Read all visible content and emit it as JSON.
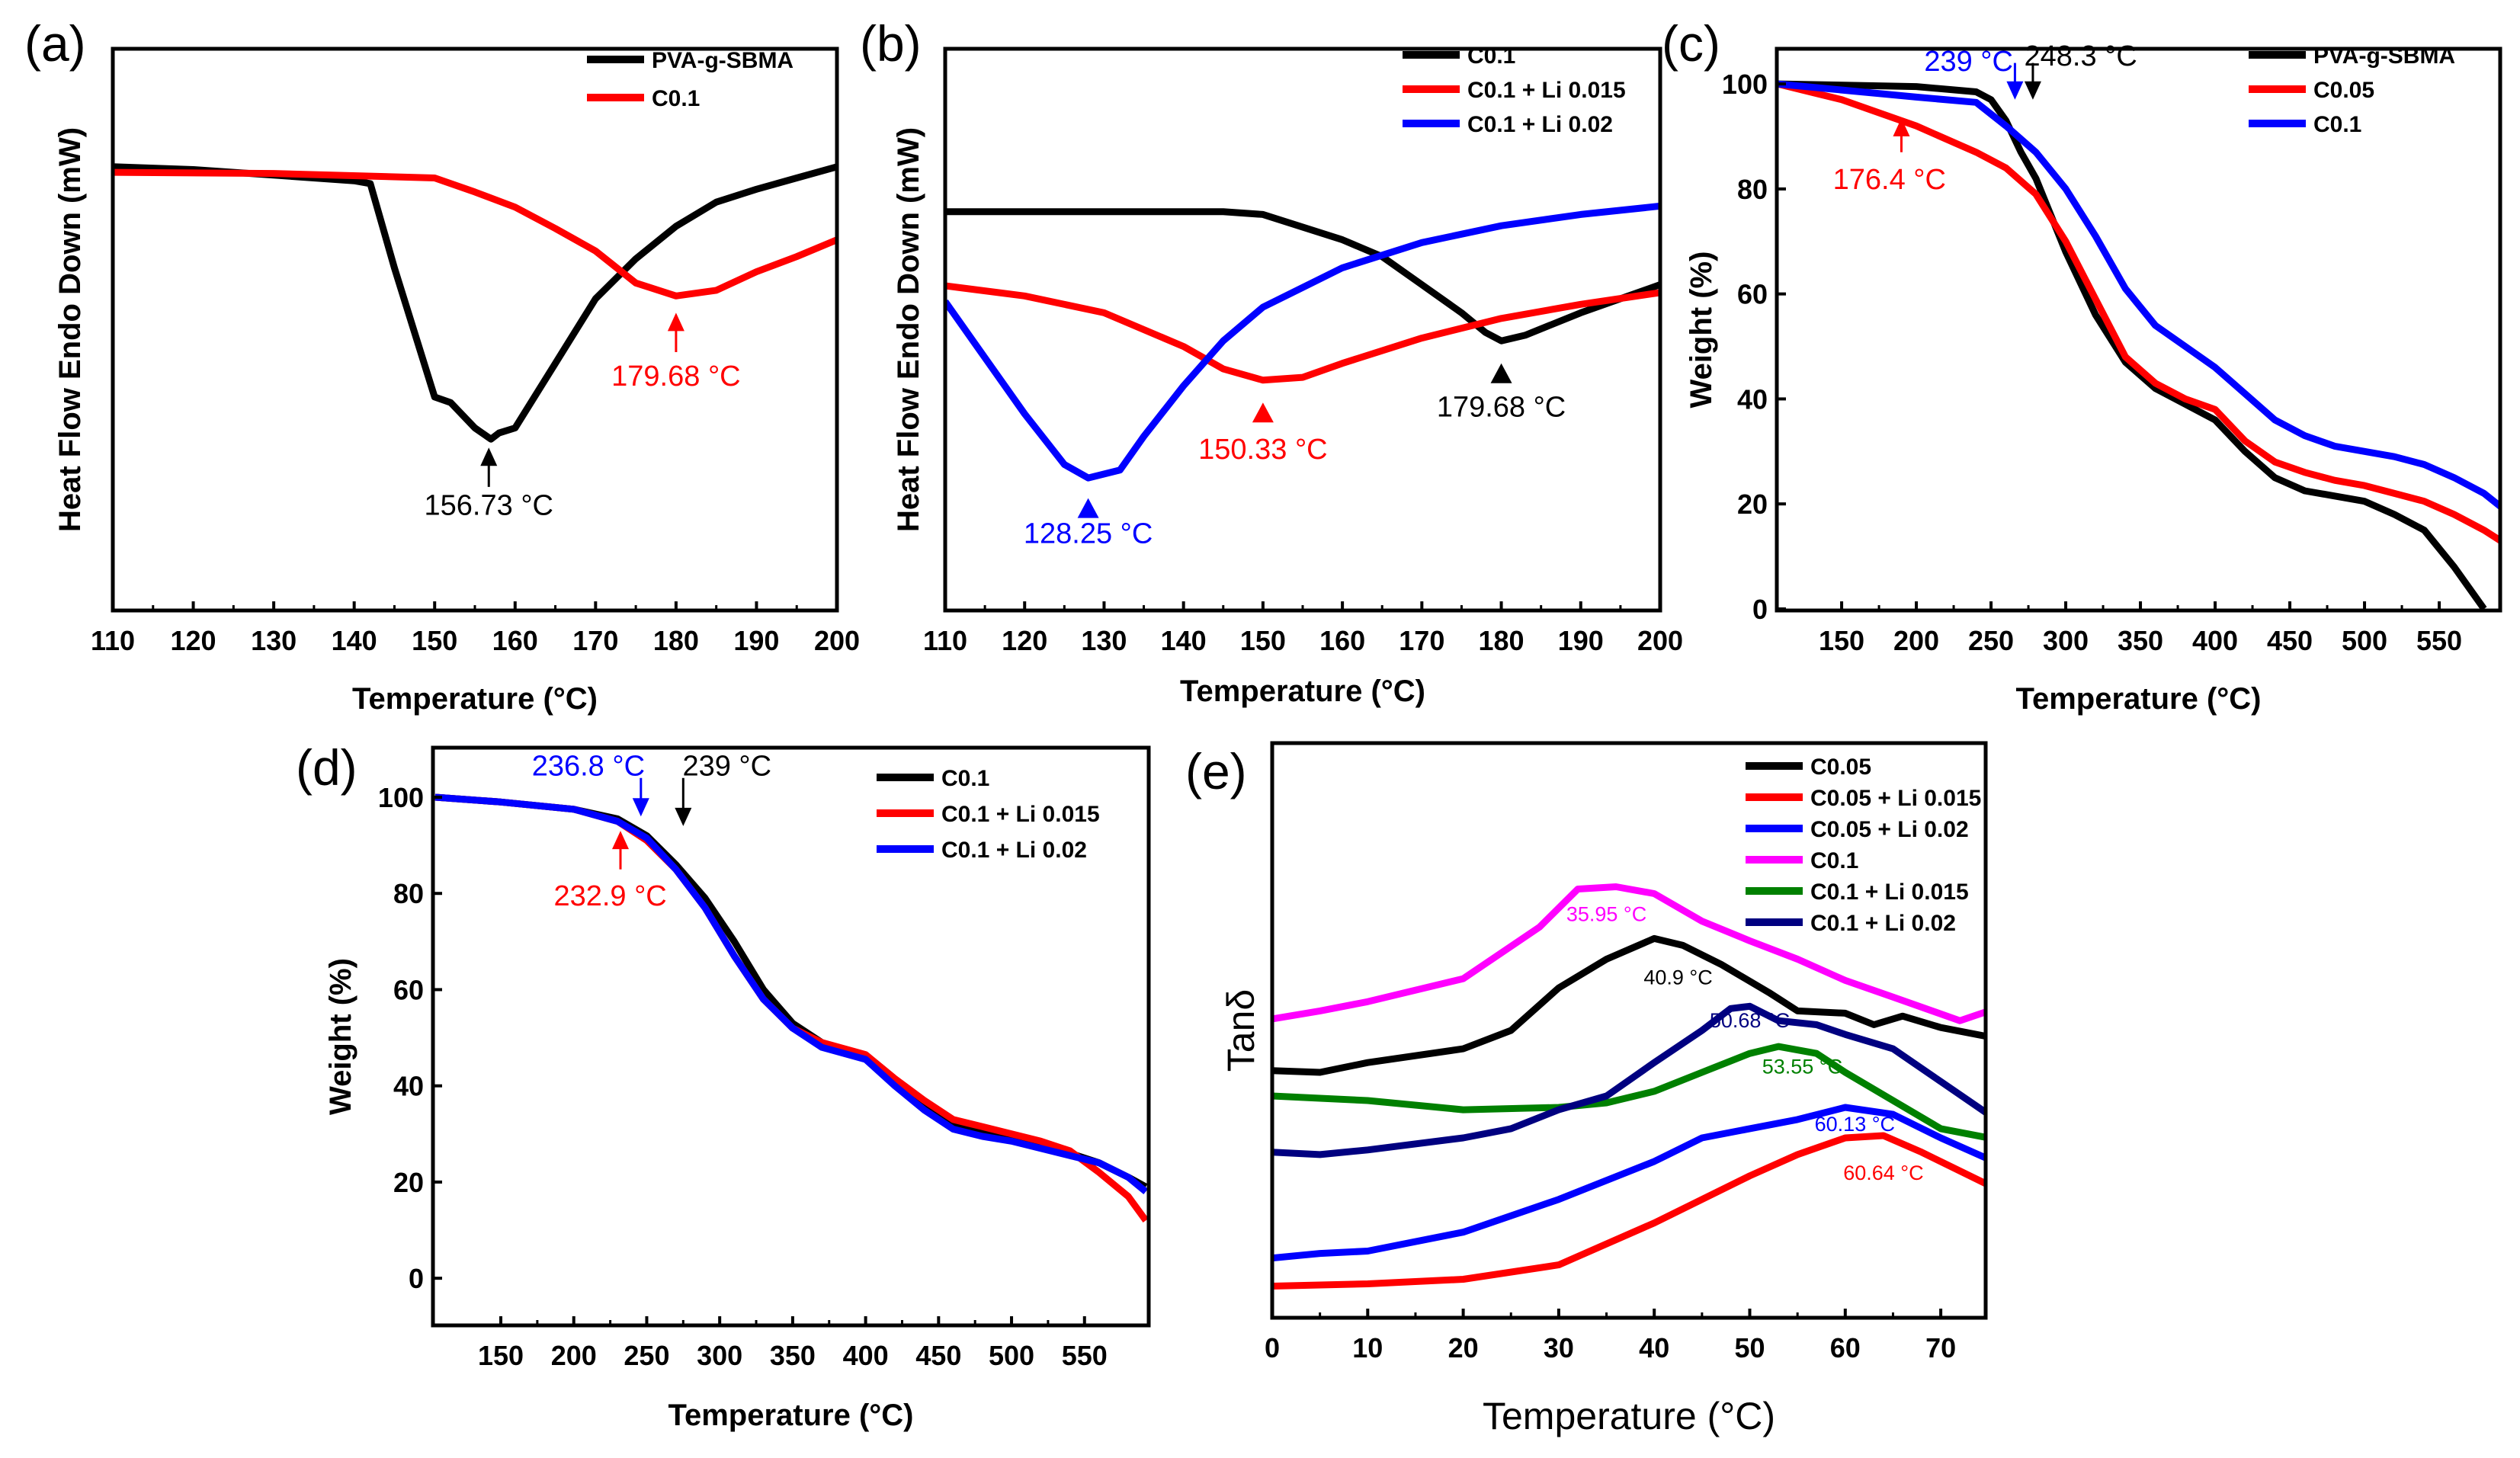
{
  "chart_data": [
    {
      "panel": "(a)",
      "type": "line",
      "xlabel": "Temperature (°C)",
      "ylabel": "Heat Flow Endo Down (mW)",
      "xlim": [
        110,
        200
      ],
      "ylim": [
        0,
        100
      ],
      "xticks": [
        110,
        120,
        130,
        140,
        150,
        160,
        170,
        180,
        190,
        200
      ],
      "yticks": [],
      "series": [
        {
          "name": "PVA-g-SBMA",
          "color": "#000000",
          "x": [
            110,
            120,
            130,
            140,
            142,
            145,
            150,
            152,
            155,
            157,
            158,
            160,
            165,
            170,
            175,
            180,
            185,
            190,
            195,
            200
          ],
          "y": [
            79,
            78.5,
            77.5,
            76.5,
            76,
            61,
            38,
            37,
            32.5,
            30.5,
            31.6,
            32.5,
            44,
            55.5,
            62.6,
            68.4,
            72.7,
            75,
            77,
            79
          ]
        },
        {
          "name": "C0.1",
          "color": "#ff0000",
          "x": [
            110,
            130,
            150,
            155,
            160,
            165,
            170,
            175,
            180,
            185,
            190,
            195,
            200
          ],
          "y": [
            78,
            77.8,
            77,
            74.5,
            71.8,
            68,
            64,
            58.3,
            56,
            57,
            60.3,
            63,
            66
          ]
        }
      ],
      "annotations": [
        {
          "text": "156.73 °C",
          "color": "#000000",
          "x": 156.73,
          "tip": 29,
          "tail": 22,
          "ty": 17,
          "kind": "arrow-up"
        },
        {
          "text": "179.68 °C",
          "color": "#ff0000",
          "x": 180,
          "tip": 53,
          "tail": 46,
          "ty": 40,
          "kind": "arrow-up"
        }
      ]
    },
    {
      "panel": "(b)",
      "type": "line",
      "xlabel": "Temperature (°C)",
      "ylabel": "Heat Flow Endo Down (mW)",
      "xlim": [
        110,
        200
      ],
      "ylim": [
        0,
        100
      ],
      "xticks": [
        110,
        120,
        130,
        140,
        150,
        160,
        170,
        180,
        190,
        200
      ],
      "yticks": [],
      "series": [
        {
          "name": "C0.1",
          "color": "#000000",
          "x": [
            110,
            145,
            150,
            160,
            165,
            170,
            175,
            178,
            180,
            183,
            190,
            200
          ],
          "y": [
            71,
            71,
            70.5,
            66,
            63,
            58,
            53,
            49.5,
            48,
            49,
            53,
            58
          ]
        },
        {
          "name": "C0.1 + Li 0.015",
          "color": "#ff0000",
          "x": [
            110,
            120,
            130,
            140,
            145,
            150,
            155,
            160,
            170,
            180,
            190,
            200
          ],
          "y": [
            57.8,
            56,
            53,
            47,
            43,
            41,
            41.5,
            44,
            48.5,
            52,
            54.5,
            56.6
          ]
        },
        {
          "name": "C0.1 + Li 0.02",
          "color": "#0000ff",
          "x": [
            110,
            115,
            120,
            125,
            128,
            132,
            135,
            140,
            145,
            150,
            160,
            170,
            180,
            190,
            200
          ],
          "y": [
            55,
            45,
            35,
            26,
            23.6,
            25,
            31,
            40,
            48,
            54,
            61,
            65.5,
            68.5,
            70.5,
            72
          ]
        }
      ],
      "annotations": [
        {
          "text": "128.25 °C",
          "color": "#0000ff",
          "x": 128,
          "tip": 20,
          "ty": 12,
          "kind": "triangle"
        },
        {
          "text": "150.33 °C",
          "color": "#ff0000",
          "x": 150,
          "tip": 37,
          "ty": 27,
          "kind": "triangle"
        },
        {
          "text": "179.68 °C",
          "color": "#000000",
          "x": 180,
          "tip": 44,
          "ty": 34.5,
          "kind": "triangle"
        }
      ]
    },
    {
      "panel": "(c)",
      "type": "line",
      "xlabel": "Temperature (°C)",
      "ylabel": "Weight (%)",
      "xlim": [
        106.6,
        590.8
      ],
      "ylim": [
        -0.3,
        106.7
      ],
      "xticks": [
        150,
        200,
        250,
        300,
        350,
        400,
        450,
        500,
        550
      ],
      "yticks": [
        0,
        20,
        40,
        60,
        80,
        100
      ],
      "series": [
        {
          "name": "PVA-g-SBMA",
          "color": "#000000",
          "x": [
            107,
            200,
            240,
            250,
            260,
            270,
            280,
            290,
            300,
            320,
            340,
            360,
            380,
            400,
            420,
            440,
            460,
            480,
            500,
            520,
            540,
            560,
            580
          ],
          "y": [
            100,
            99.5,
            98.5,
            97,
            93,
            87,
            82,
            75,
            68,
            56,
            47,
            42,
            39,
            36,
            30,
            25,
            22.5,
            21.5,
            20.5,
            18,
            15,
            8,
            0
          ]
        },
        {
          "name": "C0.05",
          "color": "#ff0000",
          "x": [
            107,
            150,
            200,
            240,
            260,
            280,
            300,
            320,
            340,
            360,
            380,
            400,
            420,
            440,
            460,
            480,
            500,
            520,
            540,
            560,
            580,
            591
          ],
          "y": [
            100,
            97,
            92,
            87,
            84,
            79,
            70,
            59,
            48,
            43,
            40,
            38,
            32,
            28,
            26,
            24.5,
            23.5,
            22,
            20.5,
            18,
            15,
            13
          ]
        },
        {
          "name": "C0.1",
          "color": "#0000ff",
          "x": [
            107,
            200,
            240,
            260,
            280,
            300,
            320,
            340,
            360,
            380,
            400,
            420,
            440,
            460,
            480,
            500,
            520,
            540,
            560,
            580,
            591
          ],
          "y": [
            100,
            97.5,
            96.5,
            92,
            87,
            80,
            71,
            61,
            54,
            50,
            46,
            41,
            36,
            33,
            31,
            30,
            29,
            27.5,
            25,
            22,
            19.5
          ]
        }
      ],
      "annotations": [
        {
          "text": "239 °C",
          "color": "#0000ff",
          "x": 266,
          "tip": 97,
          "tail": 104,
          "tx": 235,
          "ty": 102.5,
          "kind": "arrow-down"
        },
        {
          "text": "248.3 °C",
          "color": "#000000",
          "x": 278,
          "tip": 97,
          "tail": 104,
          "tx": 310,
          "ty": 103.5,
          "kind": "arrow-down"
        },
        {
          "text": "176.4 °C",
          "color": "#ff0000",
          "x": 190,
          "tip": 93.5,
          "tail": 87,
          "tx": 182,
          "ty": 80,
          "kind": "arrow-up"
        }
      ]
    },
    {
      "panel": "(d)",
      "type": "line",
      "xlabel": "Temperature (°C)",
      "ylabel": "Weight (%)",
      "xlim": [
        103.5,
        594
      ],
      "ylim": [
        -9.8,
        110.3
      ],
      "xticks": [
        150,
        200,
        250,
        300,
        350,
        400,
        450,
        500,
        550
      ],
      "yticks": [
        0,
        20,
        40,
        60,
        80,
        100
      ],
      "series": [
        {
          "name": "C0.1",
          "color": "#000000",
          "x": [
            105,
            150,
            200,
            230,
            250,
            270,
            290,
            310,
            330,
            350,
            370,
            400,
            420,
            440,
            460,
            480,
            500,
            520,
            540,
            560,
            580,
            592
          ],
          "y": [
            100,
            99,
            97.5,
            95.5,
            92,
            86,
            79,
            70,
            60,
            53,
            49,
            46,
            41,
            36,
            32,
            30.5,
            29,
            27.5,
            26,
            24,
            21,
            19
          ]
        },
        {
          "name": "C0.1 + Li 0.015",
          "color": "#ff0000",
          "x": [
            105,
            150,
            200,
            230,
            250,
            270,
            290,
            310,
            330,
            350,
            370,
            400,
            420,
            440,
            460,
            480,
            500,
            520,
            540,
            560,
            580,
            592
          ],
          "y": [
            100,
            99,
            97.5,
            95,
            91,
            85,
            77,
            67,
            58,
            52,
            49,
            46.5,
            41.5,
            37,
            33,
            31.5,
            30,
            28.5,
            26.5,
            22,
            17,
            12
          ]
        },
        {
          "name": "C0.1 + Li 0.02",
          "color": "#0000ff",
          "x": [
            105,
            150,
            200,
            230,
            250,
            270,
            290,
            310,
            330,
            350,
            370,
            400,
            420,
            440,
            460,
            480,
            500,
            520,
            540,
            560,
            580,
            592
          ],
          "y": [
            100,
            99,
            97.5,
            95,
            91.5,
            85,
            77,
            67,
            58,
            52,
            48,
            45.5,
            40,
            35,
            31,
            29.5,
            28.5,
            27,
            25.5,
            24,
            21,
            18
          ]
        }
      ],
      "annotations": [
        {
          "text": "236.8 °C",
          "color": "#0000ff",
          "x": 246,
          "tip": 96,
          "tail": 104,
          "tx": 210,
          "ty": 104.5,
          "kind": "arrow-down"
        },
        {
          "text": "239 °C",
          "color": "#000000",
          "x": 275,
          "tip": 94,
          "tail": 104,
          "tx": 305,
          "ty": 104.5,
          "kind": "arrow-down"
        },
        {
          "text": "232.9 °C",
          "color": "#ff0000",
          "x": 232,
          "tip": 93,
          "tail": 85,
          "tx": 225,
          "ty": 77.5,
          "kind": "arrow-up"
        }
      ]
    },
    {
      "panel": "(e)",
      "type": "line",
      "xlabel": "Temperature (°C)",
      "ylabel": "Tanδ",
      "xlim": [
        0,
        74.7
      ],
      "ylim": [
        0,
        100
      ],
      "xticks": [
        0,
        10,
        20,
        30,
        40,
        50,
        60,
        70
      ],
      "yticks": [],
      "series": [
        {
          "name": "C0.05",
          "color": "#000000",
          "x": [
            0,
            5,
            10,
            20,
            25,
            30,
            35,
            40,
            43,
            47,
            52,
            55,
            60,
            63,
            66,
            70,
            75
          ],
          "y": [
            43,
            42.7,
            44.4,
            46.8,
            50,
            57.4,
            62.4,
            66,
            64.8,
            61.5,
            56.6,
            53.4,
            53,
            51,
            52.5,
            50.5,
            48.9
          ]
        },
        {
          "name": "C0.05 + Li 0.015",
          "color": "#ff0000",
          "x": [
            0,
            10,
            20,
            30,
            40,
            50,
            55,
            60,
            64,
            68,
            75
          ],
          "y": [
            5.5,
            5.9,
            6.7,
            9.2,
            16.5,
            24.7,
            28.4,
            31.3,
            31.7,
            28.8,
            23.1
          ]
        },
        {
          "name": "C0.05 + Li 0.02",
          "color": "#0000ff",
          "x": [
            0,
            5,
            10,
            20,
            30,
            40,
            45,
            50,
            55,
            60,
            65,
            70,
            75
          ],
          "y": [
            10.4,
            11.2,
            11.6,
            14.9,
            20.6,
            27.2,
            31.3,
            32.9,
            34.5,
            36.6,
            35.4,
            31.3,
            27.6
          ]
        },
        {
          "name": "C0.1",
          "color": "#ff00ff",
          "x": [
            0,
            5,
            10,
            20,
            28,
            32,
            36,
            40,
            45,
            50,
            55,
            60,
            65,
            72,
            75
          ],
          "y": [
            52,
            53.4,
            55,
            59,
            68,
            74.6,
            75,
            73.8,
            69,
            65.6,
            62.4,
            58.7,
            55.8,
            51.7,
            53.4
          ]
        },
        {
          "name": "C0.1 + Li 0.015",
          "color": "#008000",
          "x": [
            0,
            5,
            10,
            20,
            30,
            35,
            40,
            45,
            50,
            53,
            57,
            60,
            65,
            70,
            75
          ],
          "y": [
            38.6,
            38.2,
            37.8,
            36.2,
            36.6,
            37.4,
            39.4,
            42.7,
            46,
            47.2,
            46,
            42.7,
            37.8,
            32.9,
            31.3
          ]
        },
        {
          "name": "C0.1 + Li 0.02",
          "color": "#000080",
          "x": [
            0,
            5,
            10,
            20,
            25,
            30,
            35,
            40,
            45,
            48,
            50,
            53,
            57,
            60,
            65,
            70,
            75
          ],
          "y": [
            28.8,
            28.4,
            29.2,
            31.3,
            32.9,
            36.2,
            38.6,
            44.4,
            50,
            53.8,
            54.2,
            51.7,
            51,
            49.3,
            46.8,
            41.1,
            35.4
          ]
        }
      ],
      "annotations": [
        {
          "text": "35.95 °C",
          "color": "#ff00ff",
          "tx": 35,
          "ty": 69,
          "kind": "label"
        },
        {
          "text": "40.9 °C",
          "color": "#000000",
          "tx": 42.5,
          "ty": 58,
          "kind": "label"
        },
        {
          "text": "50.68 °C",
          "color": "#000080",
          "tx": 50,
          "ty": 50.5,
          "kind": "label"
        },
        {
          "text": "53.55 °C",
          "color": "#008000",
          "tx": 55.5,
          "ty": 42.5,
          "kind": "label"
        },
        {
          "text": "60.13 °C",
          "color": "#0000ff",
          "tx": 61,
          "ty": 32.5,
          "kind": "label"
        },
        {
          "text": "60.64 °C",
          "color": "#ff0000",
          "tx": 64,
          "ty": 24,
          "kind": "label"
        }
      ]
    }
  ]
}
